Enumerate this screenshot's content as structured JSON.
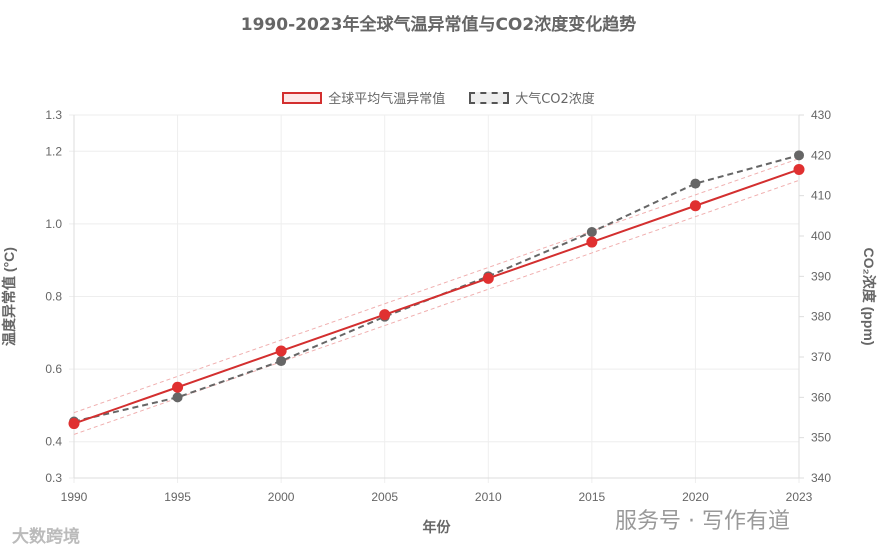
{
  "chart_data": {
    "type": "line",
    "title": "1990-2023年全球气温异常值与CO2浓度变化趋势",
    "xlabel": "年份",
    "ylabel": "温度异常值 (°C)",
    "y2label": "CO₂浓度 (ppm)",
    "categories": [
      "1990",
      "1995",
      "2000",
      "2005",
      "2010",
      "2015",
      "2020",
      "2023"
    ],
    "ylim": [
      0.3,
      1.3
    ],
    "yticks": [
      "0.3",
      "0.4",
      "0.6",
      "0.8",
      "1.0",
      "1.2",
      "1.3"
    ],
    "y2lim": [
      340,
      430
    ],
    "y2ticks": [
      "340",
      "350",
      "360",
      "370",
      "380",
      "390",
      "400",
      "410",
      "420",
      "430"
    ],
    "grid": true,
    "legend_position": "top",
    "series": [
      {
        "name": "全球平均气温异常值",
        "axis": "left",
        "color": "#d32f2f",
        "style": "solid",
        "values": [
          0.45,
          0.55,
          0.65,
          0.75,
          0.85,
          0.95,
          1.05,
          1.15
        ],
        "band": 0.03
      },
      {
        "name": "大气CO2浓度",
        "axis": "right",
        "color": "#666666",
        "style": "dashed",
        "values": [
          354,
          360,
          369,
          380,
          390,
          401,
          413,
          420
        ]
      }
    ]
  },
  "watermarks": {
    "left": "大数跨境",
    "right": "服务号 · 写作有道"
  }
}
